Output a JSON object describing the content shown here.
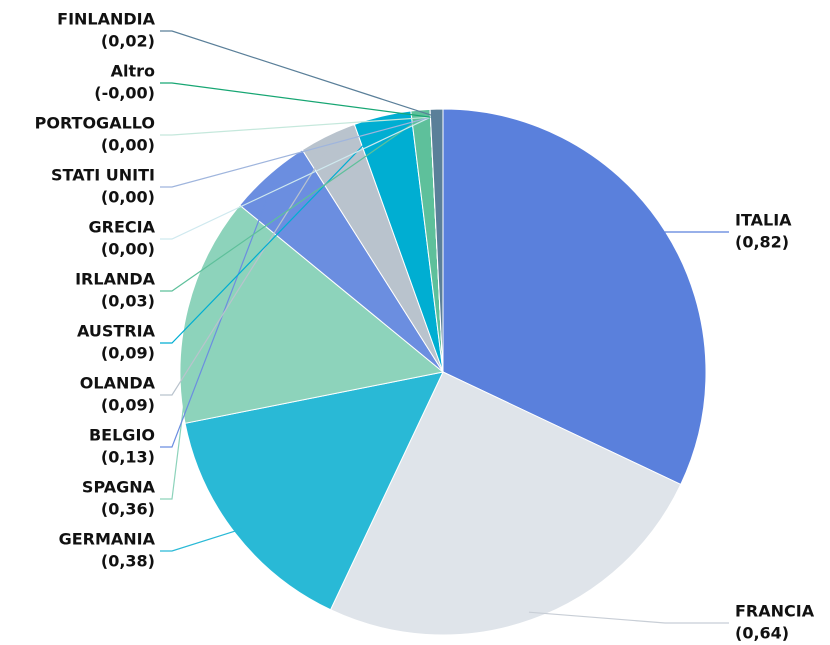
{
  "chart_data": {
    "type": "pie",
    "categories": [
      "ITALIA",
      "FRANCIA",
      "GERMANIA",
      "SPAGNA",
      "BELGIO",
      "OLANDA",
      "AUSTRIA",
      "IRLANDA",
      "GRECIA",
      "STATI UNITI",
      "PORTOGALLO",
      "Altro",
      "FINLANDIA"
    ],
    "values": [
      0.82,
      0.64,
      0.38,
      0.36,
      0.13,
      0.09,
      0.09,
      0.03,
      0,
      0,
      0,
      0,
      0.02
    ],
    "value_labels": [
      "(0,82)",
      "(0,64)",
      "(0,38)",
      "(0,36)",
      "(0,13)",
      "(0,09)",
      "(0,09)",
      "(0,03)",
      "(0,00)",
      "(0,00)",
      "(0,00)",
      "(-0,00)",
      "(0,02)"
    ],
    "colors": [
      "#5a80dc",
      "#dfe4ea",
      "#29b9d6",
      "#8dd3bb",
      "#6b8ee0",
      "#b9c3cd",
      "#00aed2",
      "#5ec09b",
      "#cfe9ef",
      "#9fb5dd",
      "#c5e8dc",
      "#17a673",
      "#5a7f99"
    ]
  }
}
